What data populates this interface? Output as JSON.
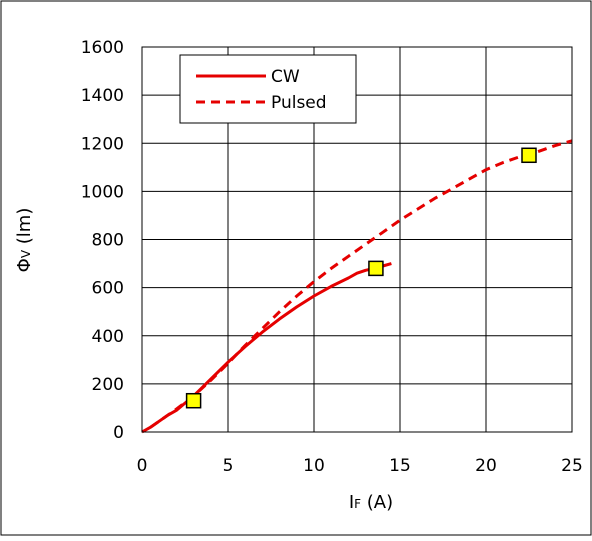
{
  "chart_data": {
    "type": "line",
    "title": "",
    "xlabel": "I",
    "xlabel_sub": "F",
    "xlabel_unit": " (A)",
    "ylabel": "Φ",
    "ylabel_sub": "V",
    "ylabel_unit": " (lm)",
    "xlim": [
      0,
      25
    ],
    "ylim": [
      0,
      1600
    ],
    "x_ticks": [
      "0",
      "5",
      "10",
      "15",
      "20",
      "25"
    ],
    "y_ticks": [
      "0",
      "200",
      "400",
      "600",
      "800",
      "1000",
      "1200",
      "1400",
      "1600"
    ],
    "grid": true,
    "legend_position": "top-left",
    "series": [
      {
        "name": "CW",
        "style": "solid",
        "color": "#e50000",
        "x": [
          0,
          0.5,
          1,
          1.5,
          2,
          2.5,
          3,
          4,
          5,
          6,
          7,
          8,
          9,
          10,
          11,
          12,
          12.5,
          13,
          13.5,
          14,
          14.5
        ],
        "y": [
          0,
          20,
          45,
          70,
          90,
          120,
          150,
          220,
          290,
          355,
          415,
          470,
          520,
          565,
          605,
          640,
          660,
          672,
          680,
          690,
          700
        ]
      },
      {
        "name": "Pulsed",
        "style": "dashed",
        "color": "#e50000",
        "x": [
          0.5,
          1,
          2,
          3,
          4,
          5,
          6,
          7,
          8,
          9,
          10,
          11,
          12,
          13,
          14,
          15,
          16,
          17,
          18,
          19,
          20,
          21,
          22,
          23,
          24,
          25
        ],
        "y": [
          20,
          45,
          95,
          150,
          215,
          285,
          360,
          430,
          500,
          565,
          625,
          680,
          730,
          780,
          830,
          880,
          925,
          970,
          1010,
          1050,
          1090,
          1120,
          1145,
          1165,
          1190,
          1210
        ]
      }
    ],
    "markers": [
      {
        "x": 3,
        "y": 130
      },
      {
        "x": 13.6,
        "y": 680
      },
      {
        "x": 22.5,
        "y": 1150
      }
    ],
    "colors": {
      "line": "#e50000",
      "marker_fill": "#ffff00",
      "marker_stroke": "#000000",
      "grid": "#000000"
    }
  }
}
